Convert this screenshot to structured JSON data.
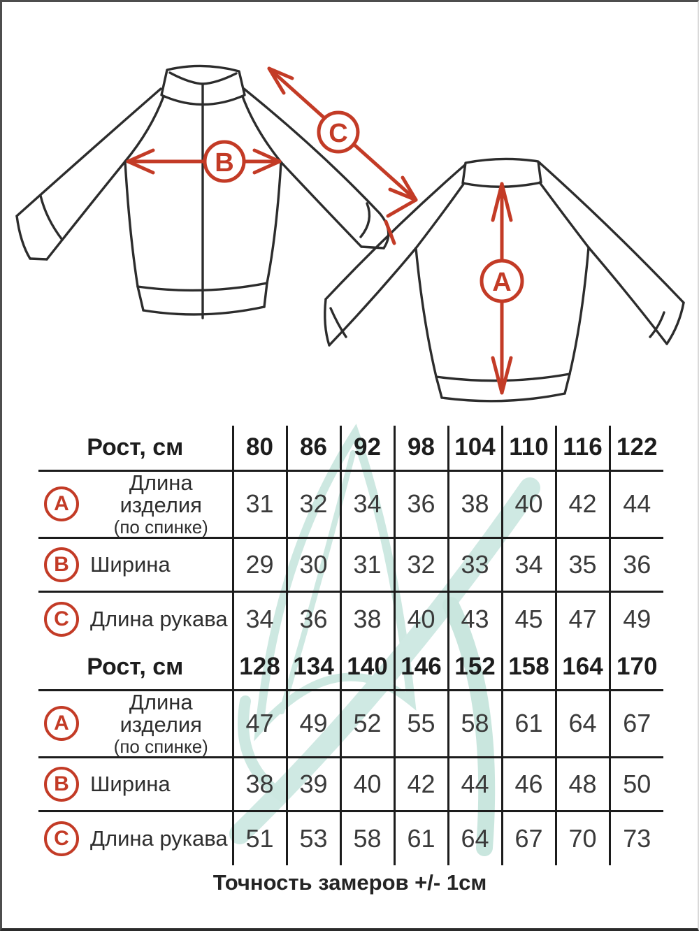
{
  "page": {
    "caption": "Точность замеров +/- 1см"
  },
  "colors": {
    "accent_red": "#c33b26",
    "line_black": "#2c2c2c",
    "table_line": "#1c1c1c",
    "watermark_teal": "#cde8e1"
  },
  "diagram": {
    "a": "A",
    "b": "B",
    "c": "C",
    "front_view": "jacket front with measurement arrows B (width) and C (sleeve length)",
    "back_view": "jacket back with measurement arrow A (back length)"
  },
  "chart_data": [
    {
      "type": "table",
      "header_label": "Рост, см",
      "columns": [
        "80",
        "86",
        "92",
        "98",
        "104",
        "110",
        "116",
        "122"
      ],
      "rows": [
        {
          "letter": "A",
          "label": "Длина изделия",
          "sublabel": "(по спинке)",
          "values": [
            "31",
            "32",
            "34",
            "36",
            "38",
            "40",
            "42",
            "44"
          ]
        },
        {
          "letter": "B",
          "label": "Ширина",
          "sublabel": "",
          "values": [
            "29",
            "30",
            "31",
            "32",
            "33",
            "34",
            "35",
            "36"
          ]
        },
        {
          "letter": "C",
          "label": "Длина рукава",
          "sublabel": "",
          "values": [
            "34",
            "36",
            "38",
            "40",
            "43",
            "45",
            "47",
            "49"
          ]
        }
      ]
    },
    {
      "type": "table",
      "header_label": "Рост, см",
      "columns": [
        "128",
        "134",
        "140",
        "146",
        "152",
        "158",
        "164",
        "170"
      ],
      "rows": [
        {
          "letter": "A",
          "label": "Длина изделия",
          "sublabel": "(по спинке)",
          "values": [
            "47",
            "49",
            "52",
            "55",
            "58",
            "61",
            "64",
            "67"
          ]
        },
        {
          "letter": "B",
          "label": "Ширина",
          "sublabel": "",
          "values": [
            "38",
            "39",
            "40",
            "42",
            "44",
            "46",
            "48",
            "50"
          ]
        },
        {
          "letter": "C",
          "label": "Длина рукава",
          "sublabel": "",
          "values": [
            "51",
            "53",
            "58",
            "61",
            "64",
            "67",
            "70",
            "73"
          ]
        }
      ]
    }
  ]
}
